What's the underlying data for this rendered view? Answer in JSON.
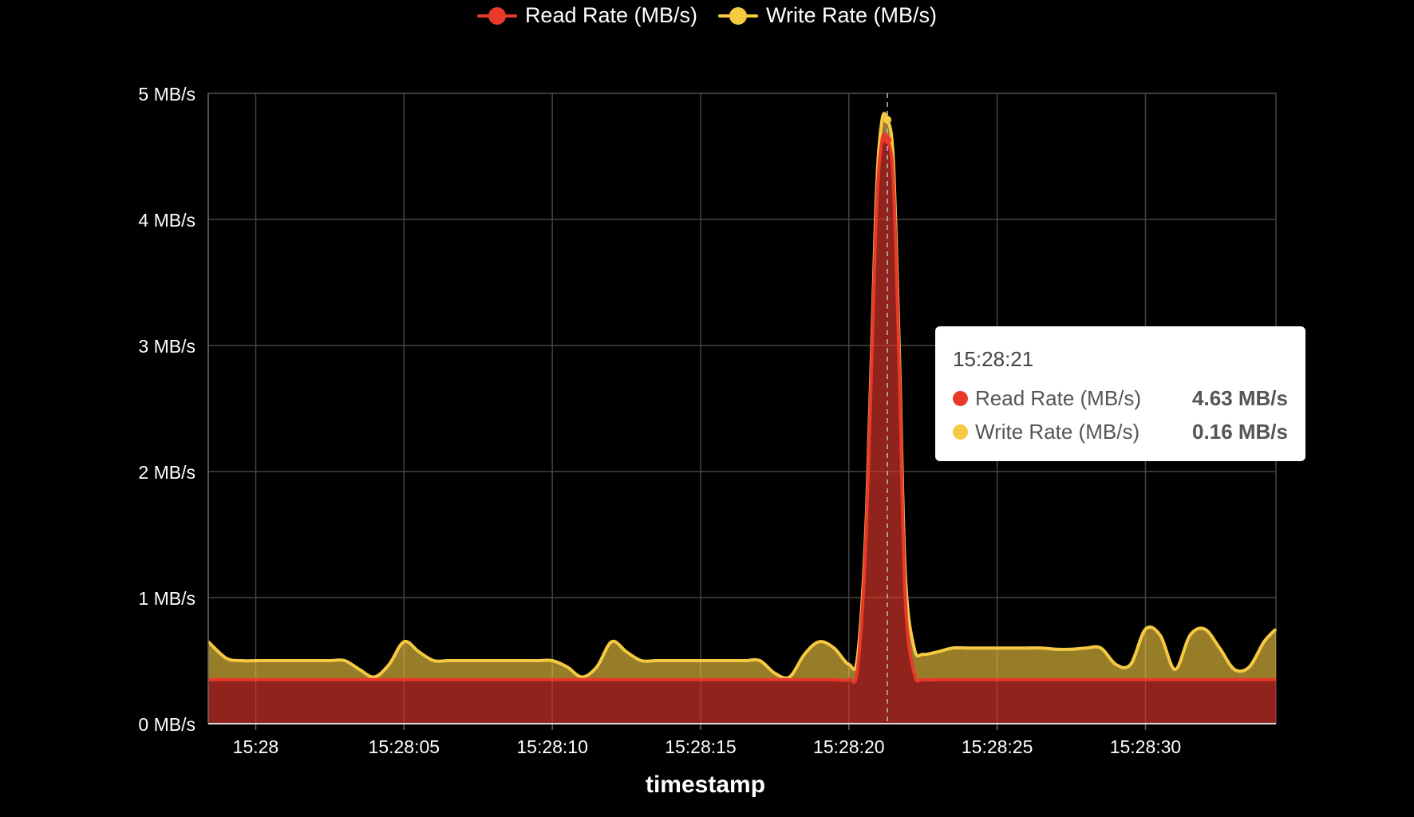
{
  "legend": [
    {
      "label": "Read Rate (MB/s)",
      "color": "#e8392b"
    },
    {
      "label": "Write Rate (MB/s)",
      "color": "#f5c942"
    }
  ],
  "tooltip": {
    "title": "15:28:21",
    "rows": [
      {
        "name": "Read Rate (MB/s)",
        "value": "4.63 MB/s",
        "color": "#e8392b"
      },
      {
        "name": "Write Rate (MB/s)",
        "value": "0.16 MB/s",
        "color": "#f5c942"
      }
    ]
  },
  "chart_data": {
    "type": "area",
    "stacked": true,
    "xlabel": "timestamp",
    "ylabel": "",
    "x_unit": "seconds after 15:28:00",
    "xlim": [
      -1.6,
      34.4
    ],
    "ylim": [
      0,
      5
    ],
    "grid": true,
    "legend_position": "top",
    "yticks": [
      {
        "value": 0,
        "label": "0 MB/s"
      },
      {
        "value": 1,
        "label": "1 MB/s"
      },
      {
        "value": 2,
        "label": "2 MB/s"
      },
      {
        "value": 3,
        "label": "3 MB/s"
      },
      {
        "value": 4,
        "label": "4 MB/s"
      },
      {
        "value": 5,
        "label": "5 MB/s"
      }
    ],
    "xticks": [
      {
        "value": 0,
        "label": "15:28"
      },
      {
        "value": 5,
        "label": "15:28:05"
      },
      {
        "value": 10,
        "label": "15:28:10"
      },
      {
        "value": 15,
        "label": "15:28:15"
      },
      {
        "value": 20,
        "label": "15:28:20"
      },
      {
        "value": 25,
        "label": "15:28:25"
      },
      {
        "value": 30,
        "label": "15:28:30"
      }
    ],
    "hover_x": 21.3,
    "x": [
      -1.6,
      -1.0,
      -0.5,
      0,
      0.5,
      1,
      1.5,
      2,
      2.5,
      3,
      3.5,
      4,
      4.5,
      5,
      5.5,
      6,
      6.5,
      7,
      7.5,
      8,
      8.5,
      9,
      9.5,
      10,
      10.5,
      11,
      11.5,
      12,
      12.5,
      13,
      13.5,
      14,
      14.5,
      15,
      15.5,
      16,
      16.5,
      17,
      17.5,
      18,
      18.5,
      19,
      19.5,
      20,
      20.3,
      20.6,
      20.9,
      21.1,
      21.3,
      21.5,
      21.7,
      21.9,
      22.2,
      22.5,
      23,
      23.5,
      24,
      24.5,
      25,
      25.5,
      26,
      26.5,
      27,
      27.5,
      28,
      28.5,
      29,
      29.5,
      30,
      30.5,
      31,
      31.5,
      32,
      32.5,
      33,
      33.5,
      34,
      34.4
    ],
    "series": [
      {
        "name": "Read Rate (MB/s)",
        "color": "#e8392b",
        "values": [
          0.35,
          0.35,
          0.35,
          0.35,
          0.35,
          0.35,
          0.35,
          0.35,
          0.35,
          0.35,
          0.35,
          0.35,
          0.35,
          0.35,
          0.35,
          0.35,
          0.35,
          0.35,
          0.35,
          0.35,
          0.35,
          0.35,
          0.35,
          0.35,
          0.35,
          0.35,
          0.35,
          0.35,
          0.35,
          0.35,
          0.35,
          0.35,
          0.35,
          0.35,
          0.35,
          0.35,
          0.35,
          0.35,
          0.35,
          0.35,
          0.35,
          0.35,
          0.35,
          0.35,
          0.45,
          1.6,
          3.9,
          4.6,
          4.63,
          4.3,
          2.8,
          1.0,
          0.4,
          0.35,
          0.35,
          0.35,
          0.35,
          0.35,
          0.35,
          0.35,
          0.35,
          0.35,
          0.35,
          0.35,
          0.35,
          0.35,
          0.35,
          0.35,
          0.35,
          0.35,
          0.35,
          0.35,
          0.35,
          0.35,
          0.35,
          0.35,
          0.35,
          0.35
        ]
      },
      {
        "name": "Write Rate (MB/s)",
        "color": "#f5c942",
        "values": [
          0.3,
          0.17,
          0.15,
          0.15,
          0.15,
          0.15,
          0.15,
          0.15,
          0.15,
          0.15,
          0.08,
          0.02,
          0.12,
          0.3,
          0.22,
          0.15,
          0.15,
          0.15,
          0.15,
          0.15,
          0.15,
          0.15,
          0.15,
          0.15,
          0.1,
          0.02,
          0.1,
          0.3,
          0.22,
          0.15,
          0.15,
          0.15,
          0.15,
          0.15,
          0.15,
          0.15,
          0.15,
          0.15,
          0.05,
          0.02,
          0.2,
          0.3,
          0.25,
          0.12,
          0.1,
          0.1,
          0.14,
          0.16,
          0.16,
          0.16,
          0.16,
          0.2,
          0.2,
          0.2,
          0.22,
          0.25,
          0.25,
          0.25,
          0.25,
          0.25,
          0.25,
          0.25,
          0.24,
          0.24,
          0.25,
          0.25,
          0.12,
          0.12,
          0.4,
          0.35,
          0.08,
          0.35,
          0.4,
          0.25,
          0.08,
          0.1,
          0.3,
          0.4
        ]
      }
    ]
  }
}
